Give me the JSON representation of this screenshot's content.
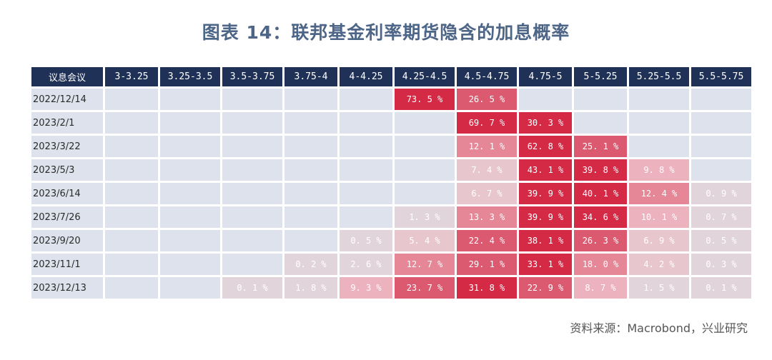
{
  "title": "图表 14：联邦基金利率期货隐含的加息概率",
  "source": "资料来源：Macrobond，兴业研究",
  "colors": {
    "header_bg": "#1f3156",
    "empty_cell": "#dde2ec",
    "high_prob": "#d42a45"
  },
  "chart_data": {
    "type": "heatmap",
    "title": "图表 14：联邦基金利率期货隐含的加息概率",
    "corner_label": "议息会议",
    "columns": [
      "3-3.25",
      "3.25-3.5",
      "3.5-3.75",
      "3.75-4",
      "4-4.25",
      "4.25-4.5",
      "4.5-4.75",
      "4.75-5",
      "5-5.25",
      "5.25-5.5",
      "5.5-5.75"
    ],
    "rows": [
      {
        "label": "2022/12/14",
        "values": [
          null,
          null,
          null,
          null,
          null,
          73.5,
          26.5,
          null,
          null,
          null,
          null
        ]
      },
      {
        "label": "2023/2/1",
        "values": [
          null,
          null,
          null,
          null,
          null,
          null,
          69.7,
          30.3,
          null,
          null,
          null
        ]
      },
      {
        "label": "2023/3/22",
        "values": [
          null,
          null,
          null,
          null,
          null,
          null,
          12.1,
          62.8,
          25.1,
          null,
          null
        ]
      },
      {
        "label": "2023/5/3",
        "values": [
          null,
          null,
          null,
          null,
          null,
          null,
          7.4,
          43.1,
          39.8,
          9.8,
          null
        ]
      },
      {
        "label": "2023/6/14",
        "values": [
          null,
          null,
          null,
          null,
          null,
          null,
          6.7,
          39.9,
          40.1,
          12.4,
          0.9
        ]
      },
      {
        "label": "2023/7/26",
        "values": [
          null,
          null,
          null,
          null,
          null,
          1.3,
          13.3,
          39.9,
          34.6,
          10.1,
          0.7
        ]
      },
      {
        "label": "2023/9/20",
        "values": [
          null,
          null,
          null,
          null,
          0.5,
          5.4,
          22.4,
          38.1,
          26.3,
          6.9,
          0.5
        ]
      },
      {
        "label": "2023/11/1",
        "values": [
          null,
          null,
          null,
          0.2,
          2.6,
          12.7,
          29.1,
          33.1,
          18.0,
          4.2,
          0.3
        ]
      },
      {
        "label": "2023/12/13",
        "values": [
          null,
          null,
          0.1,
          1.8,
          9.3,
          23.7,
          31.8,
          22.9,
          8.7,
          1.5,
          0.1
        ]
      }
    ]
  }
}
